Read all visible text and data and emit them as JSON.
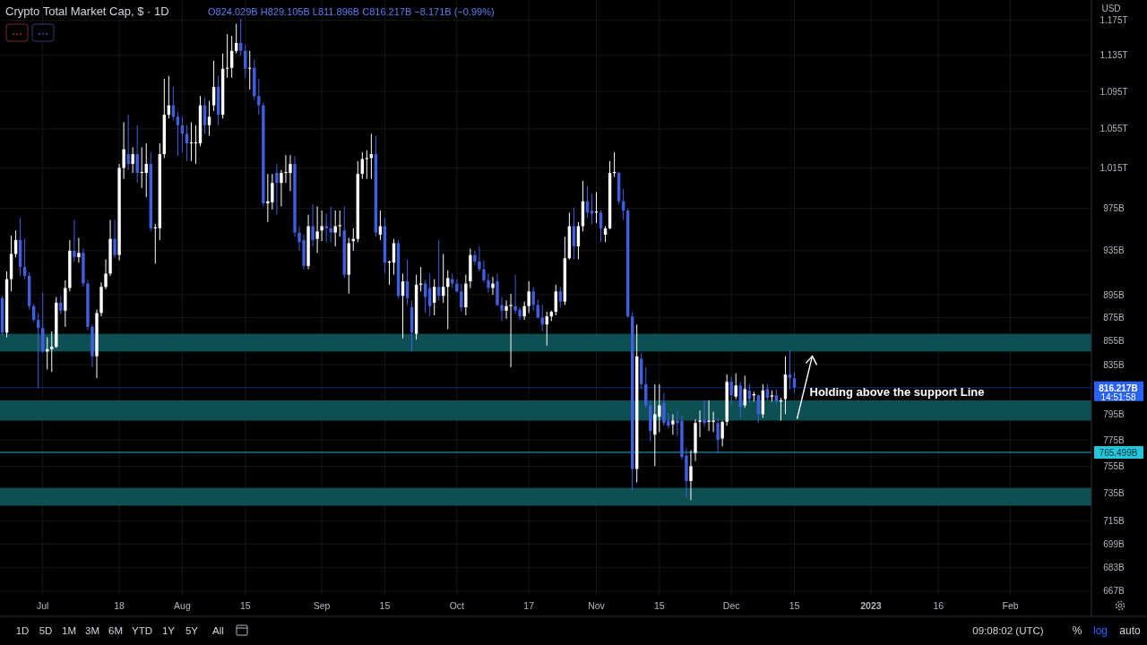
{
  "chart_data": {
    "type": "candlestick",
    "title": "Crypto Total Market Cap, $ · 1D",
    "subtitle": "O824.029B H829.105B L811.896B C816.217B −8.171B (−0.99%)",
    "x": [
      "2022-06-22",
      "2022-06-23",
      "2022-06-24",
      "2022-06-25",
      "2022-06-26",
      "2022-06-27",
      "2022-06-28",
      "2022-06-29",
      "2022-06-30",
      "2022-07-01",
      "2022-07-02",
      "2022-07-03",
      "2022-07-04",
      "2022-07-05",
      "2022-07-06",
      "2022-07-07",
      "2022-07-08",
      "2022-07-09",
      "2022-07-10",
      "2022-07-11",
      "2022-07-12",
      "2022-07-13",
      "2022-07-14",
      "2022-07-15",
      "2022-07-16",
      "2022-07-17",
      "2022-07-18",
      "2022-07-19",
      "2022-07-20",
      "2022-07-21",
      "2022-07-22",
      "2022-07-23",
      "2022-07-24",
      "2022-07-25",
      "2022-07-26",
      "2022-07-27",
      "2022-07-28",
      "2022-07-29",
      "2022-07-30",
      "2022-07-31",
      "2022-08-01",
      "2022-08-02",
      "2022-08-03",
      "2022-08-04",
      "2022-08-05",
      "2022-08-06",
      "2022-08-07",
      "2022-08-08",
      "2022-08-09",
      "2022-08-10",
      "2022-08-11",
      "2022-08-12",
      "2022-08-13",
      "2022-08-14",
      "2022-08-15",
      "2022-08-16",
      "2022-08-17",
      "2022-08-18",
      "2022-08-19",
      "2022-08-20",
      "2022-08-21",
      "2022-08-22",
      "2022-08-23",
      "2022-08-24",
      "2022-08-25",
      "2022-08-26",
      "2022-08-27",
      "2022-08-28",
      "2022-08-29",
      "2022-08-30",
      "2022-08-31",
      "2022-09-01",
      "2022-09-02",
      "2022-09-03",
      "2022-09-04",
      "2022-09-05",
      "2022-09-06",
      "2022-09-07",
      "2022-09-08",
      "2022-09-09",
      "2022-09-10",
      "2022-09-11",
      "2022-09-12",
      "2022-09-13",
      "2022-09-14",
      "2022-09-15",
      "2022-09-16",
      "2022-09-17",
      "2022-09-18",
      "2022-09-19",
      "2022-09-20",
      "2022-09-21",
      "2022-09-22",
      "2022-09-23",
      "2022-09-24",
      "2022-09-25",
      "2022-09-26",
      "2022-09-27",
      "2022-09-28",
      "2022-09-29",
      "2022-09-30",
      "2022-10-01",
      "2022-10-02",
      "2022-10-03",
      "2022-10-04",
      "2022-10-05",
      "2022-10-06",
      "2022-10-07",
      "2022-10-08",
      "2022-10-09",
      "2022-10-10",
      "2022-10-11",
      "2022-10-12",
      "2022-10-13",
      "2022-10-14",
      "2022-10-15",
      "2022-10-16",
      "2022-10-17",
      "2022-10-18",
      "2022-10-19",
      "2022-10-20",
      "2022-10-21",
      "2022-10-22",
      "2022-10-23",
      "2022-10-24",
      "2022-10-25",
      "2022-10-26",
      "2022-10-27",
      "2022-10-28",
      "2022-10-29",
      "2022-10-30",
      "2022-10-31",
      "2022-11-01",
      "2022-11-02",
      "2022-11-03",
      "2022-11-04",
      "2022-11-05",
      "2022-11-06",
      "2022-11-07",
      "2022-11-08",
      "2022-11-09",
      "2022-11-10",
      "2022-11-11",
      "2022-11-12",
      "2022-11-13",
      "2022-11-14",
      "2022-11-15",
      "2022-11-16",
      "2022-11-17",
      "2022-11-18",
      "2022-11-19",
      "2022-11-20",
      "2022-11-21",
      "2022-11-22",
      "2022-11-23",
      "2022-11-24",
      "2022-11-25",
      "2022-11-26",
      "2022-11-27",
      "2022-11-28",
      "2022-11-29",
      "2022-11-30",
      "2022-12-01",
      "2022-12-02",
      "2022-12-03",
      "2022-12-04",
      "2022-12-05",
      "2022-12-06",
      "2022-12-07",
      "2022-12-08",
      "2022-12-09",
      "2022-12-10",
      "2022-12-11",
      "2022-12-12",
      "2022-12-13",
      "2022-12-14",
      "2022-12-15"
    ],
    "ohlc": [
      [
        892000000000.0,
        894000000000.0,
        860000000000.0,
        862000000000.0
      ],
      [
        862000000000.0,
        916000000000.0,
        858000000000.0,
        909000000000.0
      ],
      [
        909000000000.0,
        949000000000.0,
        898000000000.0,
        932000000000.0
      ],
      [
        932000000000.0,
        954000000000.0,
        929000000000.0,
        945000000000.0
      ],
      [
        945000000000.0,
        966000000000.0,
        912000000000.0,
        920000000000.0
      ],
      [
        920000000000.0,
        946000000000.0,
        909000000000.0,
        912000000000.0
      ],
      [
        912000000000.0,
        915000000000.0,
        882000000000.0,
        885000000000.0
      ],
      [
        885000000000.0,
        887000000000.0,
        871000000000.0,
        873000000000.0
      ],
      [
        873000000000.0,
        879000000000.0,
        816000000000.0,
        866000000000.0
      ],
      [
        866000000000.0,
        897000000000.0,
        845000000000.0,
        846000000000.0
      ],
      [
        846000000000.0,
        858000000000.0,
        831000000000.0,
        848000000000.0
      ],
      [
        848000000000.0,
        863000000000.0,
        829000000000.0,
        850000000000.0
      ],
      [
        850000000000.0,
        893000000000.0,
        849000000000.0,
        888000000000.0
      ],
      [
        888000000000.0,
        894000000000.0,
        878000000000.0,
        881000000000.0
      ],
      [
        881000000000.0,
        908000000000.0,
        867000000000.0,
        901000000000.0
      ],
      [
        901000000000.0,
        945000000000.0,
        898000000000.0,
        935000000000.0
      ],
      [
        935000000000.0,
        964000000000.0,
        925000000000.0,
        929000000000.0
      ],
      [
        929000000000.0,
        947000000000.0,
        924000000000.0,
        933000000000.0
      ],
      [
        933000000000.0,
        937000000000.0,
        902000000000.0,
        905000000000.0
      ],
      [
        905000000000.0,
        908000000000.0,
        864000000000.0,
        867000000000.0
      ],
      [
        867000000000.0,
        869000000000.0,
        833000000000.0,
        842000000000.0
      ],
      [
        842000000000.0,
        882000000000.0,
        824000000000.0,
        879000000000.0
      ],
      [
        879000000000.0,
        906000000000.0,
        876000000000.0,
        902000000000.0
      ],
      [
        902000000000.0,
        927000000000.0,
        900000000000.0,
        914000000000.0
      ],
      [
        914000000000.0,
        964000000000.0,
        912000000000.0,
        946000000000.0
      ],
      [
        946000000000.0,
        964000000000.0,
        928000000000.0,
        931000000000.0
      ],
      [
        931000000000.0,
        1019000000000.0,
        926000000000.0,
        1015000000000.0
      ],
      [
        1015000000000.0,
        1062000000000.0,
        1004000000000.0,
        1034000000000.0
      ],
      [
        1029000000000.0,
        1070000000000.0,
        1013000000000.0,
        1019000000000.0
      ],
      [
        1019000000000.0,
        1036000000000.0,
        1010000000000.0,
        1029000000000.0
      ],
      [
        1029000000000.0,
        1059000000000.0,
        1000000000000.0,
        1010000000000.0
      ],
      [
        1010000000000.0,
        1036000000000.0,
        995000000000.0,
        1011000000000.0
      ],
      [
        1010000000000.0,
        1040000000000.0,
        986000000000.0,
        1019000000000.0
      ],
      [
        1019000000000.0,
        1031000000000.0,
        953000000000.0,
        956000000000.0
      ],
      [
        956000000000.0,
        960000000000.0,
        923000000000.0,
        957000000000.0
      ],
      [
        956000000000.0,
        1040000000000.0,
        945000000000.0,
        1029000000000.0
      ],
      [
        1029000000000.0,
        1109000000000.0,
        1025000000000.0,
        1070000000000.0
      ],
      [
        1070000000000.0,
        1112000000000.0,
        1066000000000.0,
        1080000000000.0
      ],
      [
        1080000000000.0,
        1100000000000.0,
        1064000000000.0,
        1068000000000.0
      ],
      [
        1068000000000.0,
        1073000000000.0,
        1027000000000.0,
        1059000000000.0
      ],
      [
        1059000000000.0,
        1068000000000.0,
        1031000000000.0,
        1050000000000.0
      ],
      [
        1050000000000.0,
        1059000000000.0,
        1022000000000.0,
        1040000000000.0
      ],
      [
        1040000000000.0,
        1062000000000.0,
        1022000000000.0,
        1041000000000.0
      ],
      [
        1040000000000.0,
        1059000000000.0,
        1019000000000.0,
        1041000000000.0
      ],
      [
        1040000000000.0,
        1090000000000.0,
        1037000000000.0,
        1080000000000.0
      ],
      [
        1080000000000.0,
        1088000000000.0,
        1050000000000.0,
        1059000000000.0
      ],
      [
        1059000000000.0,
        1085000000000.0,
        1048000000000.0,
        1068000000000.0
      ],
      [
        1080000000000.0,
        1129000000000.0,
        1074000000000.0,
        1100000000000.0
      ],
      [
        1100000000000.0,
        1112000000000.0,
        1059000000000.0,
        1070000000000.0
      ],
      [
        1070000000000.0,
        1137000000000.0,
        1066000000000.0,
        1120000000000.0
      ],
      [
        1120000000000.0,
        1159000000000.0,
        1110000000000.0,
        1121000000000.0
      ],
      [
        1121000000000.0,
        1157000000000.0,
        1110000000000.0,
        1140000000000.0
      ],
      [
        1140000000000.0,
        1171000000000.0,
        1137000000000.0,
        1149000000000.0
      ],
      [
        1149000000000.0,
        1177000000000.0,
        1135000000000.0,
        1140000000000.0
      ],
      [
        1140000000000.0,
        1147000000000.0,
        1110000000000.0,
        1120000000000.0
      ],
      [
        1120000000000.0,
        1140000000000.0,
        1097000000000.0,
        1121000000000.0
      ],
      [
        1121000000000.0,
        1130000000000.0,
        1086000000000.0,
        1090000000000.0
      ],
      [
        1090000000000.0,
        1109000000000.0,
        1070000000000.0,
        1080000000000.0
      ],
      [
        1080000000000.0,
        1083000000000.0,
        977000000000.0,
        980000000000.0
      ],
      [
        980000000000.0,
        1009000000000.0,
        962000000000.0,
        982000000000.0
      ],
      [
        981000000000.0,
        1009000000000.0,
        974000000000.0,
        1000000000000.0
      ],
      [
        1010000000000.0,
        1019000000000.0,
        969000000000.0,
        1000000000000.0
      ],
      [
        1000000000000.0,
        1013000000000.0,
        977000000000.0,
        1010000000000.0
      ],
      [
        1010000000000.0,
        1028000000000.0,
        1000000000000.0,
        1011000000000.0
      ],
      [
        1010000000000.0,
        1028000000000.0,
        992000000000.0,
        1019000000000.0
      ],
      [
        1019000000000.0,
        1027000000000.0,
        948000000000.0,
        952000000000.0
      ],
      [
        952000000000.0,
        958000000000.0,
        935000000000.0,
        943000000000.0
      ],
      [
        945000000000.0,
        950000000000.0,
        918000000000.0,
        921000000000.0
      ],
      [
        921000000000.0,
        969000000000.0,
        918000000000.0,
        958000000000.0
      ],
      [
        958000000000.0,
        979000000000.0,
        939000000000.0,
        945000000000.0
      ],
      [
        946000000000.0,
        977000000000.0,
        933000000000.0,
        953000000000.0
      ],
      [
        954000000000.0,
        973000000000.0,
        944000000000.0,
        958000000000.0
      ],
      [
        958000000000.0,
        970000000000.0,
        943000000000.0,
        956000000000.0
      ],
      [
        956000000000.0,
        977000000000.0,
        943000000000.0,
        952000000000.0
      ],
      [
        952000000000.0,
        973000000000.0,
        939000000000.0,
        958000000000.0
      ],
      [
        958000000000.0,
        973000000000.0,
        948000000000.0,
        959000000000.0
      ],
      [
        954000000000.0,
        977000000000.0,
        910000000000.0,
        913000000000.0
      ],
      [
        913000000000.0,
        947000000000.0,
        896000000000.0,
        942000000000.0
      ],
      [
        944000000000.0,
        956000000000.0,
        935000000000.0,
        946000000000.0
      ],
      [
        946000000000.0,
        1022000000000.0,
        943000000000.0,
        1009000000000.0
      ],
      [
        1009000000000.0,
        1031000000000.0,
        1004000000000.0,
        1024000000000.0
      ],
      [
        1024000000000.0,
        1033000000000.0,
        1004000000000.0,
        1025000000000.0
      ],
      [
        1025000000000.0,
        1050000000000.0,
        1004000000000.0,
        1029000000000.0
      ],
      [
        1029000000000.0,
        1048000000000.0,
        948000000000.0,
        952000000000.0
      ],
      [
        950000000000.0,
        973000000000.0,
        945000000000.0,
        958000000000.0
      ],
      [
        958000000000.0,
        966000000000.0,
        914000000000.0,
        924000000000.0
      ],
      [
        924000000000.0,
        926000000000.0,
        904000000000.0,
        925000000000.0
      ],
      [
        924000000000.0,
        946000000000.0,
        913000000000.0,
        942000000000.0
      ],
      [
        942000000000.0,
        945000000000.0,
        892000000000.0,
        894000000000.0
      ],
      [
        894000000000.0,
        914000000000.0,
        857000000000.0,
        907000000000.0
      ],
      [
        907000000000.0,
        927000000000.0,
        886000000000.0,
        892000000000.0
      ],
      [
        884000000000.0,
        890000000000.0,
        846000000000.0,
        862000000000.0
      ],
      [
        861000000000.0,
        913000000000.0,
        856000000000.0,
        904000000000.0
      ],
      [
        904000000000.0,
        920000000000.0,
        898000000000.0,
        905000000000.0
      ],
      [
        905000000000.0,
        908000000000.0,
        879000000000.0,
        893000000000.0
      ],
      [
        901000000000.0,
        914000000000.0,
        876000000000.0,
        885000000000.0
      ],
      [
        888000000000.0,
        909000000000.0,
        877000000000.0,
        902000000000.0
      ],
      [
        902000000000.0,
        945000000000.0,
        890000000000.0,
        894000000000.0
      ],
      [
        894000000000.0,
        932000000000.0,
        888000000000.0,
        902000000000.0
      ],
      [
        902000000000.0,
        917000000000.0,
        865000000000.0,
        910000000000.0
      ],
      [
        909000000000.0,
        914000000000.0,
        901000000000.0,
        905000000000.0
      ],
      [
        905000000000.0,
        909000000000.0,
        897000000000.0,
        898000000000.0
      ],
      [
        898000000000.0,
        905000000000.0,
        880000000000.0,
        884000000000.0
      ],
      [
        884000000000.0,
        913000000000.0,
        877000000000.0,
        905000000000.0
      ],
      [
        907000000000.0,
        937000000000.0,
        901000000000.0,
        931000000000.0
      ],
      [
        931000000000.0,
        935000000000.0,
        922000000000.0,
        925000000000.0
      ],
      [
        925000000000.0,
        939000000000.0,
        916000000000.0,
        918000000000.0
      ],
      [
        918000000000.0,
        926000000000.0,
        906000000000.0,
        908000000000.0
      ],
      [
        908000000000.0,
        914000000000.0,
        897000000000.0,
        901000000000.0
      ],
      [
        901000000000.0,
        911000000000.0,
        895000000000.0,
        905000000000.0
      ],
      [
        907000000000.0,
        914000000000.0,
        885000000000.0,
        886000000000.0
      ],
      [
        886000000000.0,
        893000000000.0,
        872000000000.0,
        881000000000.0
      ],
      [
        881000000000.0,
        890000000000.0,
        874000000000.0,
        885000000000.0
      ],
      [
        885000000000.0,
        896000000000.0,
        833000000000.0,
        886000000000.0
      ],
      [
        885000000000.0,
        913000000000.0,
        878000000000.0,
        881000000000.0
      ],
      [
        882000000000.0,
        884000000000.0,
        873000000000.0,
        876000000000.0
      ],
      [
        876000000000.0,
        889000000000.0,
        873000000000.0,
        885000000000.0
      ],
      [
        885000000000.0,
        907000000000.0,
        879000000000.0,
        898000000000.0
      ],
      [
        898000000000.0,
        902000000000.0,
        881000000000.0,
        886000000000.0
      ],
      [
        886000000000.0,
        891000000000.0,
        874000000000.0,
        875000000000.0
      ],
      [
        875000000000.0,
        886000000000.0,
        863000000000.0,
        869000000000.0
      ],
      [
        869000000000.0,
        880000000000.0,
        851000000000.0,
        876000000000.0
      ],
      [
        876000000000.0,
        881000000000.0,
        872000000000.0,
        880000000000.0
      ],
      [
        880000000000.0,
        904000000000.0,
        877000000000.0,
        898000000000.0
      ],
      [
        898000000000.0,
        902000000000.0,
        884000000000.0,
        889000000000.0
      ],
      [
        889000000000.0,
        948000000000.0,
        886000000000.0,
        928000000000.0
      ],
      [
        928000000000.0,
        971000000000.0,
        927000000000.0,
        958000000000.0
      ],
      [
        958000000000.0,
        976000000000.0,
        927000000000.0,
        939000000000.0
      ],
      [
        939000000000.0,
        962000000000.0,
        927000000000.0,
        958000000000.0
      ],
      [
        958000000000.0,
        1002000000000.0,
        953000000000.0,
        982000000000.0
      ],
      [
        982000000000.0,
        997000000000.0,
        966000000000.0,
        971000000000.0
      ],
      [
        973000000000.0,
        989000000000.0,
        960000000000.0,
        970000000000.0
      ],
      [
        971000000000.0,
        991000000000.0,
        961000000000.0,
        972000000000.0
      ],
      [
        971000000000.0,
        973000000000.0,
        943000000000.0,
        956000000000.0
      ],
      [
        950000000000.0,
        958000000000.0,
        943000000000.0,
        956000000000.0
      ],
      [
        956000000000.0,
        1022000000000.0,
        955000000000.0,
        1010000000000.0
      ],
      [
        1010000000000.0,
        1031000000000.0,
        1006000000000.0,
        1011000000000.0
      ],
      [
        1010000000000.0,
        1011000000000.0,
        979000000000.0,
        982000000000.0
      ],
      [
        982000000000.0,
        994000000000.0,
        964000000000.0,
        973000000000.0
      ],
      [
        973000000000.0,
        975000000000.0,
        875000000000.0,
        876000000000.0
      ],
      [
        876000000000.0,
        880000000000.0,
        737000000000.0,
        753000000000.0
      ],
      [
        753000000000.0,
        869000000000.0,
        743000000000.0,
        842000000000.0
      ],
      [
        840000000000.0,
        845000000000.0,
        815000000000.0,
        819000000000.0
      ],
      [
        819000000000.0,
        833000000000.0,
        800000000000.0,
        802000000000.0
      ],
      [
        802000000000.0,
        806000000000.0,
        774000000000.0,
        782000000000.0
      ],
      [
        779000000000.0,
        819000000000.0,
        755000000000.0,
        795000000000.0
      ],
      [
        793000000000.0,
        819000000000.0,
        781000000000.0,
        802000000000.0
      ],
      [
        804000000000.0,
        812000000000.0,
        786000000000.0,
        788000000000.0
      ],
      [
        790000000000.0,
        796000000000.0,
        784000000000.0,
        786000000000.0
      ],
      [
        787000000000.0,
        795000000000.0,
        779000000000.0,
        790000000000.0
      ],
      [
        790000000000.0,
        798000000000.0,
        778000000000.0,
        788000000000.0
      ],
      [
        790000000000.0,
        794000000000.0,
        760000000000.0,
        762000000000.0
      ],
      [
        763000000000.0,
        769000000000.0,
        732000000000.0,
        744000000000.0
      ],
      [
        744000000000.0,
        767000000000.0,
        730000000000.0,
        755000000000.0
      ],
      [
        765000000000.0,
        791000000000.0,
        759000000000.0,
        788000000000.0
      ],
      [
        789000000000.0,
        798000000000.0,
        777000000000.0,
        790000000000.0
      ],
      [
        791000000000.0,
        806000000000.0,
        785000000000.0,
        788000000000.0
      ],
      [
        789000000000.0,
        806000000000.0,
        782000000000.0,
        790000000000.0
      ],
      [
        789000000000.0,
        797000000000.0,
        781000000000.0,
        790000000000.0
      ],
      [
        788000000000.0,
        792000000000.0,
        765000000000.0,
        775000000000.0
      ],
      [
        776000000000.0,
        790000000000.0,
        770000000000.0,
        789000000000.0
      ],
      [
        789000000000.0,
        827000000000.0,
        786000000000.0,
        821000000000.0
      ],
      [
        821000000000.0,
        825000000000.0,
        802000000000.0,
        810000000000.0
      ],
      [
        809000000000.0,
        828000000000.0,
        807000000000.0,
        818000000000.0
      ],
      [
        818000000000.0,
        821000000000.0,
        792000000000.0,
        801000000000.0
      ],
      [
        802000000000.0,
        826000000000.0,
        800000000000.0,
        815000000000.0
      ],
      [
        814000000000.0,
        819000000000.0,
        804000000000.0,
        807000000000.0
      ],
      [
        810000000000.0,
        813000000000.0,
        805000000000.0,
        811000000000.0
      ],
      [
        810000000000.0,
        811000000000.0,
        788000000000.0,
        795000000000.0
      ],
      [
        795000000000.0,
        819000000000.0,
        792000000000.0,
        814000000000.0
      ],
      [
        815000000000.0,
        819000000000.0,
        806000000000.0,
        808000000000.0
      ],
      [
        809000000000.0,
        814000000000.0,
        805000000000.0,
        810000000000.0
      ],
      [
        810000000000.0,
        815000000000.0,
        803000000000.0,
        805000000000.0
      ],
      [
        805000000000.0,
        808000000000.0,
        790000000000.0,
        806000000000.0
      ],
      [
        807000000000.0,
        842000000000.0,
        795000000000.0,
        827000000000.0
      ],
      [
        827000000000.0,
        847000000000.0,
        815000000000.0,
        824000000000.0
      ],
      [
        824029000000.0,
        829105000000.0,
        811896000000.0,
        816217000000.0
      ]
    ],
    "colors": [
      "#3f5fe0",
      "#ffffff",
      "#ffffff",
      "#ffffff",
      "#3f5fe0",
      "#3f5fe0",
      "#3f5fe0",
      "#3f5fe0",
      "#3f5fe0",
      "#3f5fe0",
      "#ffffff",
      "#ffffff",
      "#ffffff",
      "#3f5fe0",
      "#ffffff",
      "#ffffff",
      "#3f5fe0",
      "#ffffff",
      "#3f5fe0",
      "#3f5fe0",
      "#3f5fe0",
      "#ffffff",
      "#ffffff",
      "#ffffff",
      "#ffffff",
      "#3f5fe0",
      "#ffffff",
      "#ffffff",
      "#3f5fe0",
      "#ffffff",
      "#3f5fe0",
      "#ffffff",
      "#ffffff",
      "#3f5fe0",
      "#ffffff",
      "#ffffff",
      "#ffffff",
      "#ffffff",
      "#3f5fe0",
      "#3f5fe0",
      "#3f5fe0",
      "#3f5fe0",
      "#ffffff",
      "#ffffff",
      "#ffffff",
      "#3f5fe0",
      "#ffffff",
      "#ffffff",
      "#3f5fe0",
      "#ffffff",
      "#ffffff",
      "#ffffff",
      "#ffffff",
      "#3f5fe0",
      "#3f5fe0",
      "#ffffff",
      "#3f5fe0",
      "#3f5fe0",
      "#3f5fe0",
      "#ffffff",
      "#ffffff",
      "#3f5fe0",
      "#ffffff",
      "#ffffff",
      "#ffffff",
      "#3f5fe0",
      "#3f5fe0",
      "#3f5fe0",
      "#ffffff",
      "#3f5fe0",
      "#ffffff",
      "#ffffff",
      "#3f5fe0",
      "#3f5fe0",
      "#ffffff",
      "#ffffff",
      "#3f5fe0",
      "#ffffff",
      "#ffffff",
      "#ffffff",
      "#ffffff",
      "#ffffff",
      "#ffffff",
      "#3f5fe0",
      "#ffffff",
      "#3f5fe0",
      "#ffffff",
      "#ffffff",
      "#3f5fe0",
      "#ffffff",
      "#3f5fe0",
      "#3f5fe0",
      "#ffffff",
      "#ffffff",
      "#3f5fe0",
      "#3f5fe0",
      "#ffffff",
      "#3f5fe0",
      "#ffffff",
      "#ffffff",
      "#3f5fe0",
      "#3f5fe0",
      "#3f5fe0",
      "#ffffff",
      "#ffffff",
      "#3f5fe0",
      "#3f5fe0",
      "#3f5fe0",
      "#3f5fe0",
      "#ffffff",
      "#3f5fe0",
      "#3f5fe0",
      "#ffffff",
      "#ffffff",
      "#3f5fe0",
      "#3f5fe0",
      "#ffffff",
      "#ffffff",
      "#3f5fe0",
      "#3f5fe0",
      "#3f5fe0",
      "#ffffff",
      "#ffffff",
      "#ffffff",
      "#3f5fe0",
      "#ffffff",
      "#ffffff",
      "#3f5fe0",
      "#ffffff",
      "#ffffff",
      "#3f5fe0",
      "#3f5fe0",
      "#ffffff",
      "#3f5fe0",
      "#ffffff",
      "#ffffff",
      "#ffffff",
      "#3f5fe0",
      "#3f5fe0",
      "#3f5fe0",
      "#3f5fe0",
      "#ffffff",
      "#3f5fe0",
      "#3f5fe0",
      "#3f5fe0",
      "#ffffff",
      "#ffffff",
      "#3f5fe0",
      "#3f5fe0",
      "#ffffff",
      "#3f5fe0",
      "#3f5fe0",
      "#3f5fe0",
      "#ffffff",
      "#ffffff",
      "#ffffff",
      "#3f5fe0",
      "#ffffff",
      "#ffffff",
      "#3f5fe0",
      "#ffffff",
      "#ffffff",
      "#3f5fe0",
      "#ffffff",
      "#3f5fe0",
      "#ffffff",
      "#3f5fe0",
      "#ffffff",
      "#3f5fe0",
      "#ffffff",
      "#3f5fe0",
      "#ffffff",
      "#3f5fe0",
      "#ffffff",
      "#ffffff",
      "#3f5fe0",
      "#3f5fe0"
    ],
    "log": "y",
    "grid": true,
    "ylim": [
      664000000000.0,
      1199000000000.0
    ],
    "yticks": [
      {
        "value": 667000000000.0,
        "label": "667B"
      },
      {
        "value": 683000000000.0,
        "label": "683B"
      },
      {
        "value": 699000000000.0,
        "label": "699B"
      },
      {
        "value": 715000000000.0,
        "label": "715B"
      },
      {
        "value": 735000000000.0,
        "label": "735B"
      },
      {
        "value": 755000000000.0,
        "label": "755B"
      },
      {
        "value": 775000000000.0,
        "label": "775B"
      },
      {
        "value": 795000000000.0,
        "label": "795B"
      },
      {
        "value": 835000000000.0,
        "label": "835B"
      },
      {
        "value": 855000000000.0,
        "label": "855B"
      },
      {
        "value": 875000000000.0,
        "label": "875B"
      },
      {
        "value": 895000000000.0,
        "label": "895B"
      },
      {
        "value": 935000000000.0,
        "label": "935B"
      },
      {
        "value": 975000000000.0,
        "label": "975B"
      },
      {
        "value": 1015000000000.0,
        "label": "1.015T"
      },
      {
        "value": 1055000000000.0,
        "label": "1.055T"
      },
      {
        "value": 1095000000000.0,
        "label": "1.095T"
      },
      {
        "value": 1135000000000.0,
        "label": "1.135T"
      },
      {
        "value": 1175000000000.0,
        "label": "1.175T"
      }
    ],
    "xlim": [
      "2022-06-21T12:00",
      "2023-02-19"
    ],
    "xticks": [
      {
        "value": "2022-07-01",
        "label": "Jul"
      },
      {
        "value": "2022-07-18",
        "label": "18"
      },
      {
        "value": "2022-08-01",
        "label": "Aug"
      },
      {
        "value": "2022-08-15",
        "label": "15"
      },
      {
        "value": "2022-09-01",
        "label": "Sep"
      },
      {
        "value": "2022-09-15",
        "label": "15"
      },
      {
        "value": "2022-10-01",
        "label": "Oct"
      },
      {
        "value": "2022-10-17",
        "label": "17"
      },
      {
        "value": "2022-11-01",
        "label": "Nov"
      },
      {
        "value": "2022-11-15",
        "label": "15"
      },
      {
        "value": "2022-12-01",
        "label": "Dec"
      },
      {
        "value": "2022-12-15",
        "label": "15"
      },
      {
        "value": "2023-01-01",
        "label": "2023"
      },
      {
        "value": "2023-01-16",
        "label": "16"
      },
      {
        "value": "2023-02-01",
        "label": "Feb"
      }
    ],
    "bands": [
      {
        "axis": "y",
        "from": 846000000000.0,
        "to": 861000000000.0,
        "color": "#0d4f52"
      },
      {
        "axis": "y",
        "from": 790000000000.0,
        "to": 806000000000.0,
        "color": "#0d4f52"
      },
      {
        "axis": "y",
        "from": 726000000000.0,
        "to": 739000000000.0,
        "color": "#0d4f52"
      }
    ],
    "ref_lines": [
      {
        "axis": "y",
        "value": 816217000000.0,
        "label": "816.217B",
        "color": "#2962ff"
      },
      {
        "axis": "y",
        "value": 765499000000.0,
        "label": "765.499B",
        "color": "#26c6da"
      }
    ],
    "annotations": [
      "Holding above the support Line",
      "14:51:58",
      "USD",
      "1D",
      "5D",
      "1M",
      "3M",
      "6M",
      "YTD",
      "1Y",
      "5Y",
      "All",
      "09:08:02 (UTC)",
      "%",
      "log",
      "auto"
    ]
  }
}
